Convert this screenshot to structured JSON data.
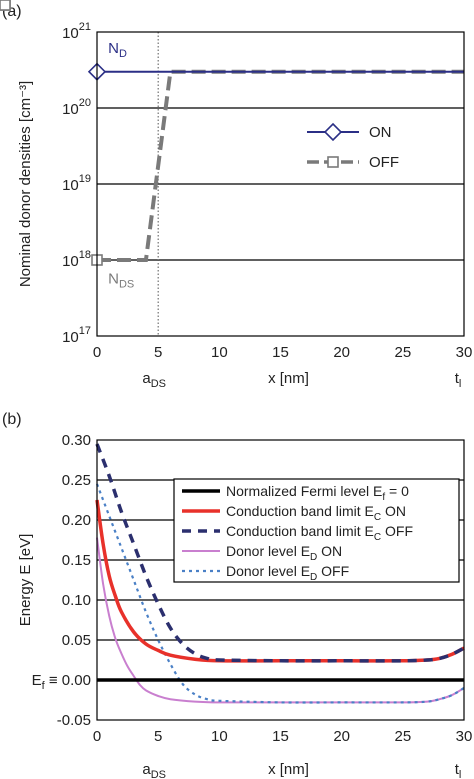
{
  "colors": {
    "on_top": "#2b2f86",
    "off_top": "#7a7a7a",
    "fermi": "#000000",
    "cb_on": "#e8312a",
    "cb_off": "#2b2f6e",
    "donor_on": "#c97fcf",
    "donor_off": "#4a80c6",
    "grid": "#000000",
    "vline": "#555555"
  },
  "chart_data": [
    {
      "panel_label": "(a)",
      "type": "line",
      "yscale": "log",
      "xlabel": "x [nm]",
      "ylabel": "Nominal donor densities [cm⁻³]",
      "xlim": [
        0,
        30
      ],
      "ylim": [
        1e+17,
        1e+21
      ],
      "x_ticks": [
        "0",
        "5",
        "10",
        "15",
        "20",
        "25",
        "30"
      ],
      "y_ticks": [
        {
          "base": "10",
          "exp": "17"
        },
        {
          "base": "10",
          "exp": "18"
        },
        {
          "base": "10",
          "exp": "19"
        },
        {
          "base": "10",
          "exp": "20"
        },
        {
          "base": "10",
          "exp": "21"
        }
      ],
      "x_below_labels": {
        "left": {
          "main": "a",
          "sub": "DS"
        },
        "right": {
          "main": "t",
          "sub": "l"
        }
      },
      "vertical_line_x": 5,
      "annotations": [
        {
          "main": "N",
          "sub": "D",
          "x": 0.5,
          "y": 5e+20
        },
        {
          "main": "N",
          "sub": "DS",
          "x": 0.5,
          "y": 5.5e+17
        }
      ],
      "legend": {
        "position": "right-center",
        "entries": [
          "ON",
          "OFF"
        ]
      },
      "series": [
        {
          "name": "ON",
          "x": [
            0,
            30
          ],
          "y": [
            3e+20,
            3e+20
          ],
          "markers": [
            0,
            30
          ]
        },
        {
          "name": "OFF",
          "x": [
            0,
            4,
            6,
            30
          ],
          "y": [
            1e+18,
            1e+18,
            3e+20,
            3e+20
          ],
          "markers": [
            0,
            4,
            6
          ]
        }
      ]
    },
    {
      "panel_label": "(b)",
      "type": "line",
      "xlabel": "x [nm]",
      "ylabel": "Energy E [eV]",
      "xlim": [
        0,
        30
      ],
      "ylim": [
        -0.05,
        0.3
      ],
      "x_ticks": [
        "0",
        "5",
        "10",
        "15",
        "20",
        "25",
        "30"
      ],
      "y_ticks": [
        "-0.05",
        "0.00",
        "0.05",
        "0.10",
        "0.15",
        "0.20",
        "0.25",
        "0.30"
      ],
      "y_zero_prefix": {
        "main": "E",
        "sub": "f",
        "tail": " ≡ "
      },
      "x_below_labels": {
        "left": {
          "main": "a",
          "sub": "DS"
        },
        "right": {
          "main": "t",
          "sub": "l"
        }
      },
      "legend": {
        "position": "top-right",
        "entries": [
          {
            "main": "Normalized Fermi level E",
            "sub": "f",
            "tail": " = 0"
          },
          {
            "main": "Conduction band limit E",
            "sub": "C",
            "tail": " ON"
          },
          {
            "main": "Conduction band limit E",
            "sub": "C",
            "tail": " OFF"
          },
          {
            "main": "Donor level E",
            "sub": "D",
            "tail": " ON"
          },
          {
            "main": "Donor level E",
            "sub": "D",
            "tail": " OFF"
          }
        ]
      },
      "series": [
        {
          "name": "Fermi",
          "x": [
            0,
            30
          ],
          "y": [
            0.0,
            0.0
          ]
        },
        {
          "name": "CB_ON",
          "x": [
            0,
            0.5,
            1,
            1.5,
            2,
            3,
            4,
            5,
            6,
            8,
            10,
            15,
            20,
            25,
            27,
            28,
            29,
            30
          ],
          "y": [
            0.225,
            0.17,
            0.13,
            0.105,
            0.085,
            0.06,
            0.045,
            0.037,
            0.031,
            0.026,
            0.024,
            0.024,
            0.024,
            0.024,
            0.025,
            0.027,
            0.032,
            0.04
          ]
        },
        {
          "name": "CB_OFF",
          "x": [
            0,
            1,
            2,
            3,
            4,
            5,
            6,
            7,
            8,
            9,
            10,
            15,
            20,
            25,
            27,
            28,
            29,
            30
          ],
          "y": [
            0.295,
            0.255,
            0.21,
            0.17,
            0.13,
            0.095,
            0.065,
            0.045,
            0.033,
            0.027,
            0.025,
            0.024,
            0.024,
            0.024,
            0.025,
            0.027,
            0.032,
            0.04
          ]
        },
        {
          "name": "DL_ON",
          "x": [
            0,
            0.5,
            1,
            1.5,
            2,
            2.5,
            3,
            3.5,
            4,
            5,
            6,
            8,
            10,
            15,
            20,
            25,
            27,
            28,
            29,
            30
          ],
          "y": [
            0.178,
            0.12,
            0.08,
            0.052,
            0.033,
            0.017,
            0.005,
            -0.006,
            -0.013,
            -0.02,
            -0.024,
            -0.027,
            -0.028,
            -0.028,
            -0.028,
            -0.028,
            -0.027,
            -0.024,
            -0.019,
            -0.01
          ]
        },
        {
          "name": "DL_OFF",
          "x": [
            0,
            1,
            2,
            3,
            4,
            5,
            6,
            7,
            8,
            9,
            10,
            15,
            20,
            25,
            27,
            28,
            29,
            30
          ],
          "y": [
            0.245,
            0.205,
            0.165,
            0.125,
            0.085,
            0.05,
            0.02,
            -0.005,
            -0.018,
            -0.024,
            -0.026,
            -0.028,
            -0.028,
            -0.028,
            -0.027,
            -0.024,
            -0.019,
            -0.01
          ]
        }
      ]
    }
  ]
}
